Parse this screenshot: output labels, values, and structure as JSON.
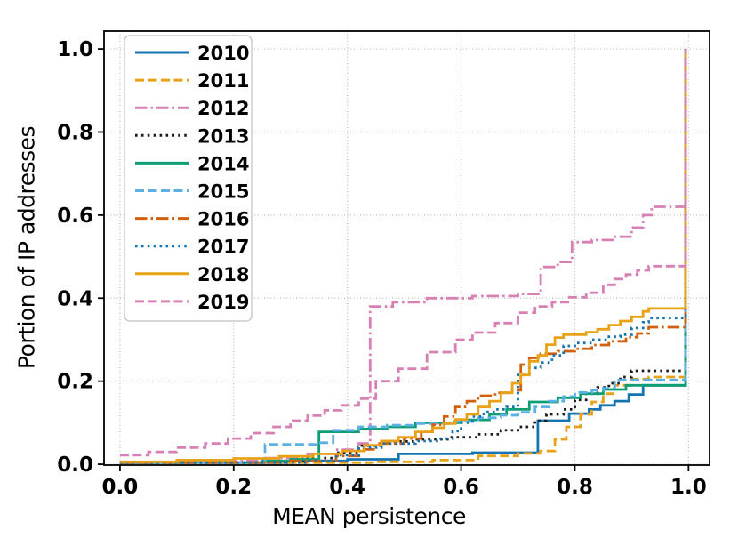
{
  "chart_data": {
    "type": "line",
    "subtype": "step-cdf",
    "title": "",
    "xlabel": "MEAN persistence",
    "ylabel": "Portion of IP addresses",
    "xlim": [
      -0.028,
      1.037
    ],
    "ylim": [
      -0.002,
      1.043
    ],
    "xticks": [
      0.0,
      0.2,
      0.4,
      0.6,
      0.8,
      1.0
    ],
    "yticks": [
      0.0,
      0.2,
      0.4,
      0.6,
      0.8,
      1.0
    ],
    "xtick_labels": [
      "0.0",
      "0.2",
      "0.4",
      "0.6",
      "0.8",
      "1.0"
    ],
    "ytick_labels": [
      "0.0",
      "0.2",
      "0.4",
      "0.6",
      "0.8",
      "1.0"
    ],
    "grid": true,
    "grid_color": "#bbbbbb",
    "legend_position": "upper left",
    "colors": {
      "blue": "#1673b1",
      "gold": "#e9a217",
      "pink": "#d880b4",
      "black": "#1a1a1a",
      "green": "#0d9e76",
      "lightblue": "#5cb0e6",
      "darkorange": "#d0600d"
    },
    "series": [
      {
        "name": "2010",
        "color": "#1673b1",
        "style": "solid",
        "points": [
          [
            0,
            0.004
          ],
          [
            0.3,
            0.008
          ],
          [
            0.4,
            0.012
          ],
          [
            0.49,
            0.025
          ],
          [
            0.62,
            0.028
          ],
          [
            0.735,
            0.105
          ],
          [
            0.79,
            0.122
          ],
          [
            0.825,
            0.132
          ],
          [
            0.845,
            0.142
          ],
          [
            0.87,
            0.152
          ],
          [
            0.895,
            0.168
          ],
          [
            0.92,
            0.19
          ],
          [
            0.99,
            0.19
          ],
          [
            0.995,
            1.0
          ]
        ]
      },
      {
        "name": "2011",
        "color": "#e9a217",
        "style": "dashed",
        "points": [
          [
            0,
            0.004
          ],
          [
            0.45,
            0.006
          ],
          [
            0.55,
            0.01
          ],
          [
            0.63,
            0.02
          ],
          [
            0.7,
            0.026
          ],
          [
            0.74,
            0.032
          ],
          [
            0.765,
            0.06
          ],
          [
            0.785,
            0.09
          ],
          [
            0.81,
            0.12
          ],
          [
            0.83,
            0.15
          ],
          [
            0.85,
            0.17
          ],
          [
            0.87,
            0.19
          ],
          [
            0.9,
            0.205
          ],
          [
            0.93,
            0.21
          ],
          [
            0.99,
            0.21
          ],
          [
            0.995,
            1.0
          ]
        ]
      },
      {
        "name": "2012",
        "color": "#d880b4",
        "style": "dashdot",
        "points": [
          [
            0,
            0.004
          ],
          [
            0.15,
            0.008
          ],
          [
            0.25,
            0.015
          ],
          [
            0.33,
            0.025
          ],
          [
            0.38,
            0.035
          ],
          [
            0.42,
            0.05
          ],
          [
            0.44,
            0.38
          ],
          [
            0.48,
            0.39
          ],
          [
            0.54,
            0.4
          ],
          [
            0.62,
            0.405
          ],
          [
            0.7,
            0.41
          ],
          [
            0.74,
            0.475
          ],
          [
            0.77,
            0.487
          ],
          [
            0.795,
            0.535
          ],
          [
            0.83,
            0.54
          ],
          [
            0.87,
            0.548
          ],
          [
            0.9,
            0.57
          ],
          [
            0.92,
            0.6
          ],
          [
            0.935,
            0.62
          ],
          [
            0.99,
            0.62
          ],
          [
            0.995,
            1.0
          ]
        ]
      },
      {
        "name": "2013",
        "color": "#1a1a1a",
        "style": "dotted",
        "points": [
          [
            0,
            0.004
          ],
          [
            0.25,
            0.008
          ],
          [
            0.33,
            0.015
          ],
          [
            0.38,
            0.028
          ],
          [
            0.42,
            0.045
          ],
          [
            0.46,
            0.055
          ],
          [
            0.52,
            0.06
          ],
          [
            0.58,
            0.065
          ],
          [
            0.63,
            0.072
          ],
          [
            0.67,
            0.082
          ],
          [
            0.7,
            0.09
          ],
          [
            0.73,
            0.105
          ],
          [
            0.75,
            0.12
          ],
          [
            0.78,
            0.132
          ],
          [
            0.8,
            0.155
          ],
          [
            0.82,
            0.17
          ],
          [
            0.84,
            0.185
          ],
          [
            0.86,
            0.195
          ],
          [
            0.88,
            0.21
          ],
          [
            0.9,
            0.225
          ],
          [
            0.99,
            0.225
          ],
          [
            0.995,
            1.0
          ]
        ]
      },
      {
        "name": "2014",
        "color": "#0d9e76",
        "style": "solid",
        "points": [
          [
            0,
            0.004
          ],
          [
            0.25,
            0.008
          ],
          [
            0.3,
            0.012
          ],
          [
            0.35,
            0.078
          ],
          [
            0.42,
            0.085
          ],
          [
            0.47,
            0.09
          ],
          [
            0.52,
            0.1
          ],
          [
            0.6,
            0.107
          ],
          [
            0.65,
            0.12
          ],
          [
            0.68,
            0.132
          ],
          [
            0.72,
            0.15
          ],
          [
            0.77,
            0.16
          ],
          [
            0.81,
            0.17
          ],
          [
            0.85,
            0.18
          ],
          [
            0.89,
            0.19
          ],
          [
            0.99,
            0.19
          ],
          [
            0.995,
            1.0
          ]
        ]
      },
      {
        "name": "2015",
        "color": "#5cb0e6",
        "style": "dashed",
        "points": [
          [
            0,
            0.004
          ],
          [
            0.255,
            0.048
          ],
          [
            0.345,
            0.052
          ],
          [
            0.375,
            0.082
          ],
          [
            0.42,
            0.09
          ],
          [
            0.47,
            0.094
          ],
          [
            0.52,
            0.098
          ],
          [
            0.58,
            0.103
          ],
          [
            0.63,
            0.112
          ],
          [
            0.67,
            0.118
          ],
          [
            0.7,
            0.125
          ],
          [
            0.73,
            0.138
          ],
          [
            0.755,
            0.152
          ],
          [
            0.78,
            0.163
          ],
          [
            0.8,
            0.173
          ],
          [
            0.83,
            0.178
          ],
          [
            0.85,
            0.183
          ],
          [
            0.87,
            0.203
          ],
          [
            0.99,
            0.203
          ],
          [
            0.995,
            1.0
          ]
        ]
      },
      {
        "name": "2016",
        "color": "#d0600d",
        "style": "dashdot",
        "points": [
          [
            0,
            0.004
          ],
          [
            0.3,
            0.008
          ],
          [
            0.38,
            0.02
          ],
          [
            0.42,
            0.036
          ],
          [
            0.45,
            0.05
          ],
          [
            0.5,
            0.062
          ],
          [
            0.53,
            0.078
          ],
          [
            0.55,
            0.095
          ],
          [
            0.57,
            0.115
          ],
          [
            0.59,
            0.138
          ],
          [
            0.61,
            0.152
          ],
          [
            0.63,
            0.165
          ],
          [
            0.66,
            0.172
          ],
          [
            0.69,
            0.178
          ],
          [
            0.705,
            0.24
          ],
          [
            0.72,
            0.256
          ],
          [
            0.74,
            0.266
          ],
          [
            0.77,
            0.272
          ],
          [
            0.8,
            0.278
          ],
          [
            0.83,
            0.287
          ],
          [
            0.86,
            0.296
          ],
          [
            0.89,
            0.306
          ],
          [
            0.91,
            0.315
          ],
          [
            0.93,
            0.33
          ],
          [
            0.99,
            0.33
          ],
          [
            0.995,
            1.0
          ]
        ]
      },
      {
        "name": "2017",
        "color": "#1673b1",
        "style": "dotted",
        "points": [
          [
            0,
            0.004
          ],
          [
            0.33,
            0.008
          ],
          [
            0.38,
            0.022
          ],
          [
            0.42,
            0.04
          ],
          [
            0.46,
            0.05
          ],
          [
            0.52,
            0.056
          ],
          [
            0.56,
            0.062
          ],
          [
            0.585,
            0.08
          ],
          [
            0.6,
            0.1
          ],
          [
            0.62,
            0.115
          ],
          [
            0.64,
            0.126
          ],
          [
            0.66,
            0.132
          ],
          [
            0.68,
            0.138
          ],
          [
            0.7,
            0.215
          ],
          [
            0.72,
            0.232
          ],
          [
            0.74,
            0.245
          ],
          [
            0.76,
            0.262
          ],
          [
            0.78,
            0.285
          ],
          [
            0.8,
            0.292
          ],
          [
            0.83,
            0.3
          ],
          [
            0.86,
            0.307
          ],
          [
            0.88,
            0.312
          ],
          [
            0.9,
            0.328
          ],
          [
            0.92,
            0.342
          ],
          [
            0.93,
            0.352
          ],
          [
            0.99,
            0.352
          ],
          [
            0.995,
            1.0
          ]
        ]
      },
      {
        "name": "2018",
        "color": "#e9a217",
        "style": "solid",
        "points": [
          [
            0,
            0.006
          ],
          [
            0.1,
            0.01
          ],
          [
            0.2,
            0.014
          ],
          [
            0.28,
            0.019
          ],
          [
            0.34,
            0.025
          ],
          [
            0.39,
            0.032
          ],
          [
            0.43,
            0.046
          ],
          [
            0.46,
            0.056
          ],
          [
            0.49,
            0.065
          ],
          [
            0.52,
            0.078
          ],
          [
            0.55,
            0.088
          ],
          [
            0.57,
            0.098
          ],
          [
            0.59,
            0.108
          ],
          [
            0.61,
            0.12
          ],
          [
            0.63,
            0.138
          ],
          [
            0.65,
            0.152
          ],
          [
            0.67,
            0.172
          ],
          [
            0.69,
            0.195
          ],
          [
            0.705,
            0.215
          ],
          [
            0.72,
            0.248
          ],
          [
            0.735,
            0.262
          ],
          [
            0.75,
            0.288
          ],
          [
            0.765,
            0.305
          ],
          [
            0.78,
            0.312
          ],
          [
            0.82,
            0.318
          ],
          [
            0.84,
            0.325
          ],
          [
            0.86,
            0.335
          ],
          [
            0.88,
            0.345
          ],
          [
            0.9,
            0.355
          ],
          [
            0.92,
            0.368
          ],
          [
            0.93,
            0.375
          ],
          [
            0.99,
            0.375
          ],
          [
            0.995,
            1.0
          ]
        ]
      },
      {
        "name": "2019",
        "color": "#d880b4",
        "style": "dashed",
        "points": [
          [
            0,
            0.022
          ],
          [
            0.05,
            0.03
          ],
          [
            0.1,
            0.04
          ],
          [
            0.15,
            0.05
          ],
          [
            0.19,
            0.062
          ],
          [
            0.23,
            0.075
          ],
          [
            0.27,
            0.09
          ],
          [
            0.3,
            0.105
          ],
          [
            0.33,
            0.117
          ],
          [
            0.36,
            0.13
          ],
          [
            0.39,
            0.142
          ],
          [
            0.42,
            0.158
          ],
          [
            0.45,
            0.2
          ],
          [
            0.49,
            0.23
          ],
          [
            0.54,
            0.27
          ],
          [
            0.59,
            0.3
          ],
          [
            0.62,
            0.317
          ],
          [
            0.66,
            0.34
          ],
          [
            0.7,
            0.365
          ],
          [
            0.73,
            0.38
          ],
          [
            0.76,
            0.39
          ],
          [
            0.79,
            0.402
          ],
          [
            0.82,
            0.413
          ],
          [
            0.85,
            0.432
          ],
          [
            0.87,
            0.446
          ],
          [
            0.89,
            0.457
          ],
          [
            0.91,
            0.467
          ],
          [
            0.93,
            0.477
          ],
          [
            0.99,
            0.477
          ],
          [
            0.995,
            1.0
          ]
        ]
      }
    ]
  }
}
